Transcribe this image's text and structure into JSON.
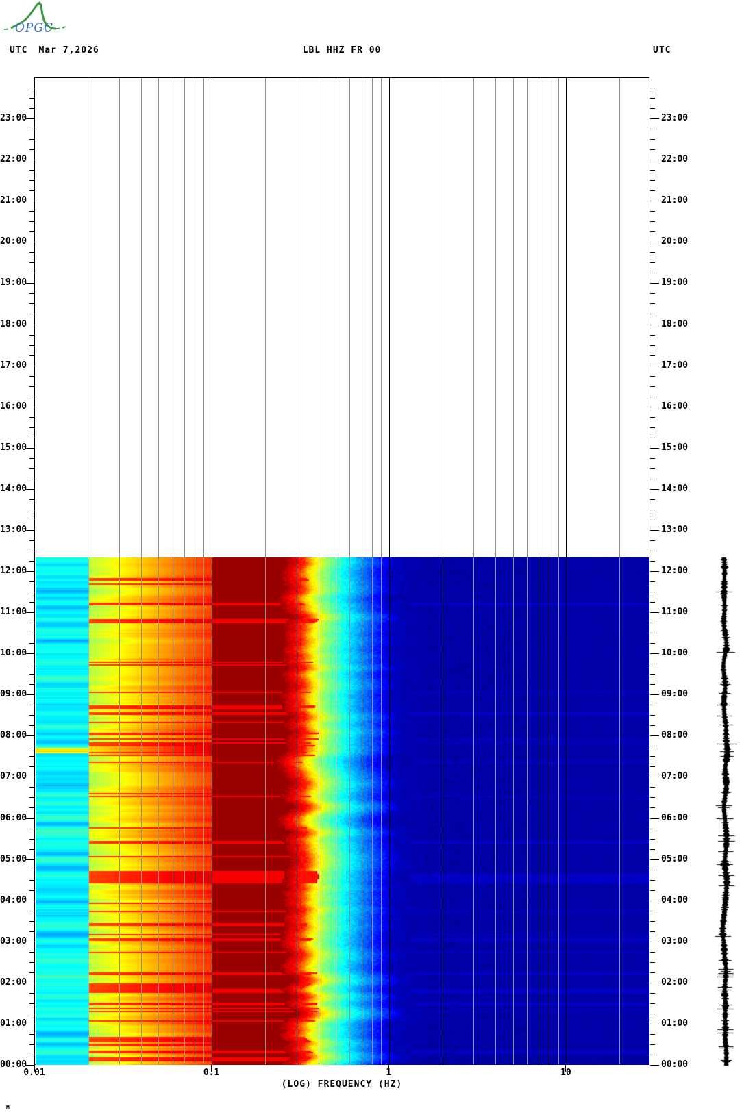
{
  "logo": {
    "text": "OPGC"
  },
  "header": {
    "left_utc": "UTC",
    "date": "Mar 7,2026",
    "title": "LBL HHZ FR 00",
    "right_utc": "UTC"
  },
  "axes": {
    "x_label": "(LOG) FREQUENCY (HZ)",
    "x_ticks": [
      {
        "label": "0.01",
        "hz": 0.01
      },
      {
        "label": "0.1",
        "hz": 0.1
      },
      {
        "label": "1",
        "hz": 1
      },
      {
        "label": "10",
        "hz": 10
      }
    ],
    "grid_minor_hz": [
      0.02,
      0.03,
      0.04,
      0.05,
      0.06,
      0.07,
      0.08,
      0.09,
      0.2,
      0.3,
      0.4,
      0.5,
      0.6,
      0.7,
      0.8,
      0.9,
      2,
      3,
      4,
      5,
      6,
      7,
      8,
      9,
      20
    ],
    "grid_major_hz": [
      0.1,
      1,
      10
    ],
    "hour_labels": [
      "23:00",
      "22:00",
      "21:00",
      "20:00",
      "19:00",
      "18:00",
      "17:00",
      "16:00",
      "15:00",
      "14:00",
      "13:00",
      "12:00",
      "11:00",
      "10:00",
      "09:00",
      "08:00",
      "07:00",
      "06:00",
      "05:00",
      "04:00",
      "03:00",
      "02:00",
      "01:00",
      "00:00"
    ]
  },
  "corner_mark": "M",
  "chart_data": {
    "type": "heatmap",
    "title": "LBL HHZ FR 00",
    "date": "Mar 7,2026",
    "timezone": "UTC",
    "xlabel": "(LOG) FREQUENCY (HZ)",
    "x_scale": "log",
    "x_range_hz": [
      0.01,
      29.7
    ],
    "y_axis_hours": 24,
    "data_window": {
      "start_utc": "00:00",
      "end_utc": "12:20"
    },
    "colormap": "jet",
    "colormap_anchors": [
      [
        0.0,
        [
          0,
          0,
          131
        ]
      ],
      [
        0.03,
        [
          0,
          0,
          160
        ]
      ],
      [
        0.125,
        [
          0,
          0,
          255
        ]
      ],
      [
        0.375,
        [
          0,
          255,
          255
        ]
      ],
      [
        0.625,
        [
          255,
          255,
          0
        ]
      ],
      [
        0.875,
        [
          255,
          0,
          0
        ]
      ],
      [
        1.0,
        [
          128,
          0,
          0
        ]
      ]
    ],
    "bands": [
      {
        "hz": [
          0.01,
          0.02
        ],
        "desc": "turquoise striped band",
        "v_base": 0.37,
        "v_var": 0.08
      },
      {
        "hz": [
          0.02,
          0.095
        ],
        "desc": "yellow-green, orange/red streaks",
        "v_base": 0.55,
        "v_end": 0.82
      },
      {
        "hz": [
          0.095,
          0.25
        ],
        "desc": "dark red plateau",
        "v_base": 0.975
      },
      {
        "hz": [
          0.25,
          1.0
        ],
        "desc": "jagged decline red-yellow-cyan-blue"
      },
      {
        "hz": [
          1.0,
          29.7
        ],
        "desc": "dark navy, faint mottling",
        "v_base": 0.038
      }
    ],
    "decline_profile": [
      [
        -1.0,
        0.975
      ],
      [
        -0.6,
        0.975
      ],
      [
        -0.5,
        0.84
      ],
      [
        -0.44,
        0.66
      ],
      [
        -0.36,
        0.52
      ],
      [
        -0.27,
        0.4
      ],
      [
        -0.16,
        0.27
      ],
      [
        -0.06,
        0.15
      ],
      [
        0.02,
        0.058
      ],
      [
        0.12,
        0.042
      ],
      [
        1.48,
        0.038
      ]
    ],
    "hot_row_fraction": 0.13,
    "side_trace": {
      "present": true,
      "color": "#000000"
    }
  },
  "colors": {
    "grid_minor": "#909090",
    "grid_major": "#000000",
    "text": "#000000",
    "logo_green": "#3c9a3c",
    "logo_blue": "#2e6bc8"
  }
}
